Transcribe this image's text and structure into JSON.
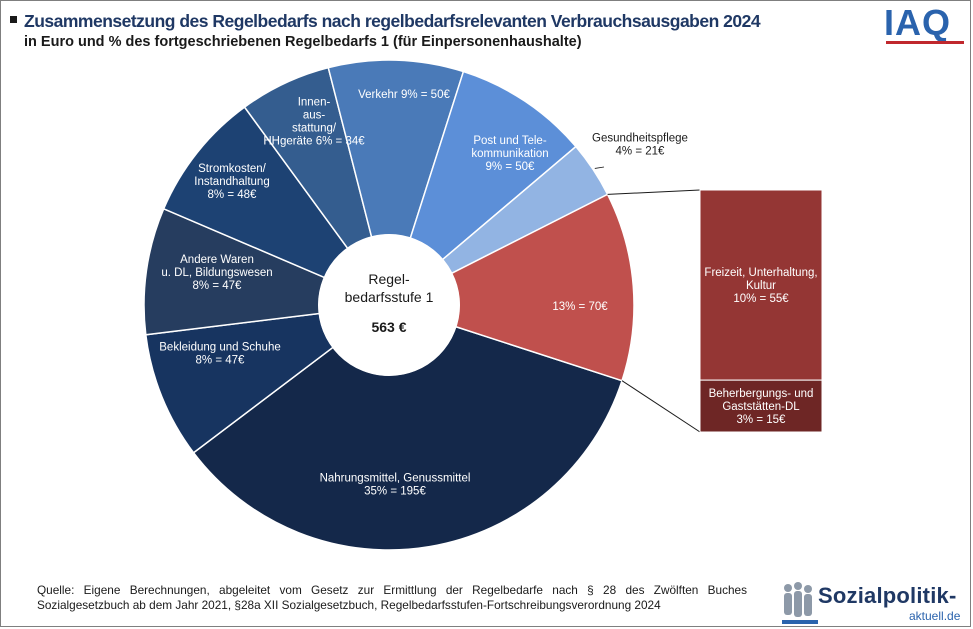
{
  "header": {
    "title": "Zusammensetzung des Regelbedarfs nach regelbedarfsrelevanten Verbrauchsausgaben 2024",
    "subtitle": "in Euro und % des fortgeschriebenen Regelbedarfs 1 (für Einpersonenhaushalte)"
  },
  "logos": {
    "iaq": "IAQ",
    "sozialpolitik_name": "Sozialpolitik-",
    "sozialpolitik_sub": "aktuell.de"
  },
  "source": {
    "line1": "Quelle: Eigene Berechnungen, abgeleitet vom Gesetz zur Ermittlung der Regelbedarfe nach § 28 des Zwölften Buches",
    "line2": "Sozialgesetzbuch ab dem Jahr 2021, §28a XII Sozialgesetzbuch, Regelbedarfsstufen-Fortschreibungsverordnung 2024"
  },
  "chart_data": {
    "type": "pie",
    "variant": "doughnut with bar-of-pie breakout",
    "center": {
      "line1": "Regel-",
      "line2": "bedarfsstufe 1",
      "total": "563 €"
    },
    "slices": [
      {
        "name": "Nahrungsmittel, Genussmittel",
        "percent": 35,
        "value": 195,
        "label": [
          "Nahrungsmittel, Genussmittel",
          "35% = 195€"
        ],
        "color": "#14284a"
      },
      {
        "name": "Bekleidung und Schuhe",
        "percent": 8,
        "value": 47,
        "label": [
          "Bekleidung und Schuhe",
          "8% = 47€"
        ],
        "color": "#173460"
      },
      {
        "name": "Andere Waren u. DL, Bildungswesen",
        "percent": 8,
        "value": 47,
        "label": [
          "Andere Waren",
          "u. DL, Bildungswesen",
          "8% = 47€"
        ],
        "color": "#263d5f"
      },
      {
        "name": "Stromkosten/ Instandhaltung",
        "percent": 8,
        "value": 48,
        "label": [
          "Stromkosten/",
          "Instandhaltung",
          "8% = 48€"
        ],
        "color": "#1d4273"
      },
      {
        "name": "Innenausstattung/ HHgeräte",
        "percent": 6,
        "value": 34,
        "label": [
          "Innen-",
          "aus-",
          "stattung/",
          "HHgeräte 6% = 34€"
        ],
        "color": "#345d8f"
      },
      {
        "name": "Verkehr",
        "percent": 9,
        "value": 50,
        "label": [
          "Verkehr 9% = 50€"
        ],
        "color": "#4a7ab8"
      },
      {
        "name": "Post und Telekommunikation",
        "percent": 9,
        "value": 50,
        "label": [
          "Post und Tele-",
          "kommunikation",
          "9% = 50€"
        ],
        "color": "#5c8fd8"
      },
      {
        "name": "Gesundheitspflege",
        "percent": 4,
        "value": 21,
        "label": [
          "Gesundheitspflege",
          "4% = 21€"
        ],
        "color": "#92b4e3"
      },
      {
        "name": "Freizeit, Unterhaltung, Kultur + Beherbergungs- und Gaststätten-DL",
        "percent": 13,
        "value": 70,
        "label": [
          "13% = 70€"
        ],
        "color": "#c0504d"
      }
    ],
    "breakout": [
      {
        "name": "Freizeit, Unterhaltung, Kultur",
        "percent": 10,
        "value": 55,
        "label": [
          "Freizeit, Unterhaltung,",
          "Kultur",
          "10% = 55€"
        ],
        "color": "#943634"
      },
      {
        "name": "Beherbergungs- und Gaststätten-DL",
        "percent": 3,
        "value": 15,
        "label": [
          "Beherbergungs- und",
          "Gaststätten-DL",
          "3% = 15€"
        ],
        "color": "#6e2625"
      }
    ]
  }
}
